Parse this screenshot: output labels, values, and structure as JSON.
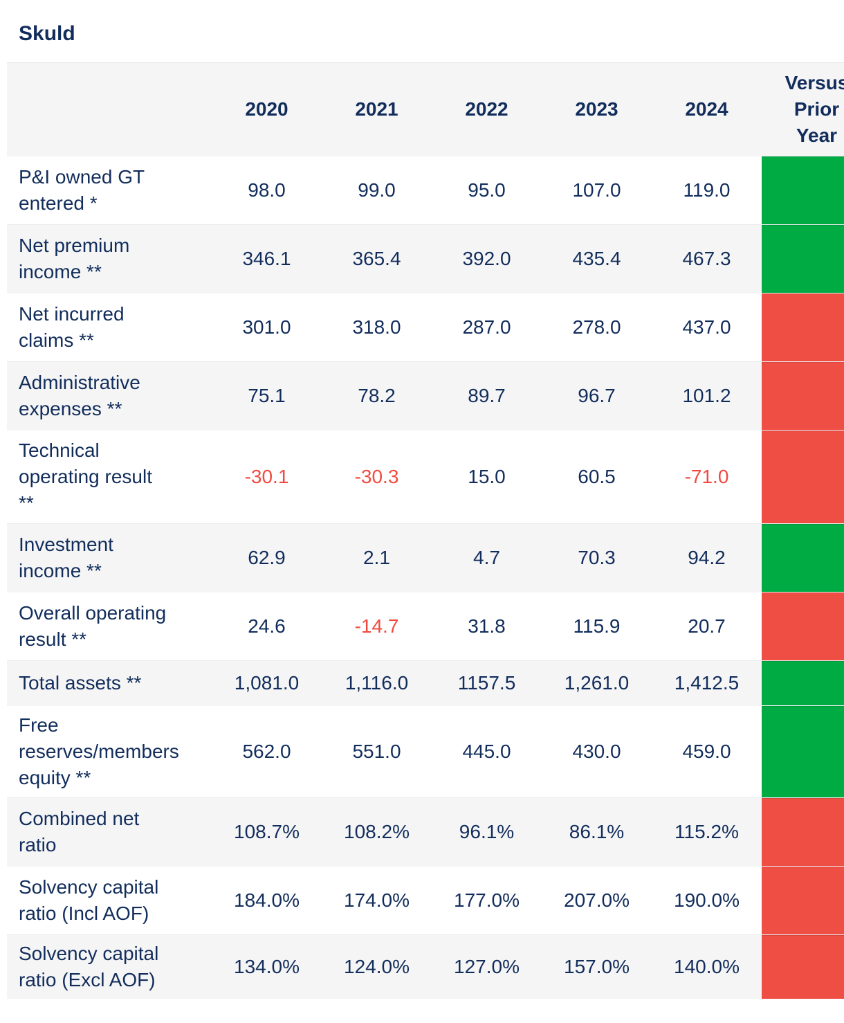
{
  "title": "Skuld",
  "table": {
    "metric_header": "",
    "year_headers": [
      "2020",
      "2021",
      "2022",
      "2023",
      "2024"
    ],
    "versus_header": "Versus\nPrior\nYear",
    "rows": [
      {
        "label": "P&I owned GT\nentered *",
        "values": [
          "98.0",
          "99.0",
          "95.0",
          "107.0",
          "119.0"
        ],
        "versus": "green"
      },
      {
        "label": "Net premium\nincome **",
        "values": [
          "346.1",
          "365.4",
          "392.0",
          "435.4",
          "467.3"
        ],
        "versus": "green"
      },
      {
        "label": "Net incurred\nclaims **",
        "values": [
          "301.0",
          "318.0",
          "287.0",
          "278.0",
          "437.0"
        ],
        "versus": "red"
      },
      {
        "label": "Administrative\nexpenses **",
        "values": [
          "75.1",
          "78.2",
          "89.7",
          "96.7",
          "101.2"
        ],
        "versus": "red"
      },
      {
        "label": "Technical\noperating result\n**",
        "values": [
          "-30.1",
          "-30.3",
          "15.0",
          "60.5",
          "-71.0"
        ],
        "versus": "red"
      },
      {
        "label": "Investment\nincome **",
        "values": [
          "62.9",
          "2.1",
          "4.7",
          "70.3",
          "94.2"
        ],
        "versus": "green"
      },
      {
        "label": "Overall operating\nresult **",
        "values": [
          "24.6",
          "-14.7",
          "31.8",
          "115.9",
          "20.7"
        ],
        "versus": "red"
      },
      {
        "label": "Total assets **",
        "values": [
          "1,081.0",
          "1,116.0",
          "1157.5",
          "1,261.0",
          "1,412.5"
        ],
        "versus": "green"
      },
      {
        "label": "Free\nreserves/members\nequity **",
        "values": [
          "562.0",
          "551.0",
          "445.0",
          "430.0",
          "459.0"
        ],
        "versus": "green"
      },
      {
        "label": "Combined net\nratio",
        "values": [
          "108.7%",
          "108.2%",
          "96.1%",
          "86.1%",
          "115.2%"
        ],
        "versus": "red"
      },
      {
        "label": "Solvency capital\nratio (Incl AOF)",
        "values": [
          "184.0%",
          "174.0%",
          "177.0%",
          "207.0%",
          "190.0%"
        ],
        "versus": "red"
      },
      {
        "label": "Solvency capital\nratio (Excl AOF)",
        "values": [
          "134.0%",
          "124.0%",
          "127.0%",
          "157.0%",
          "140.0%"
        ],
        "versus": "red"
      }
    ]
  },
  "theme": {
    "text_color": "#122d5b",
    "negative_text_color": "#f2493f",
    "positive_cell_color": "#00ab44",
    "negative_cell_color": "#ef4e45",
    "stripe_color": "#f5f5f6"
  }
}
